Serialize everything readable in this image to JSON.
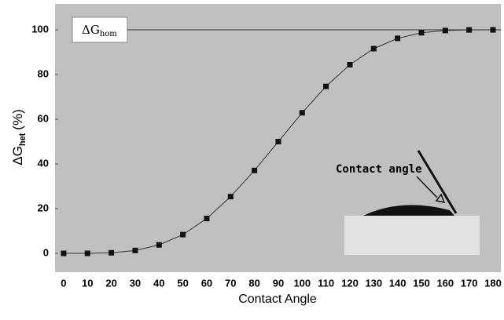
{
  "chart_data": {
    "type": "line",
    "x_label": "Contact Angle",
    "y_label": {
      "main": "ΔG",
      "sub": "het",
      "suffix": "(%)"
    },
    "reference_label": {
      "main": "ΔG",
      "sub": "hom"
    },
    "reference_value": 100,
    "annotation": "Contact angle",
    "x": [
      0,
      10,
      20,
      30,
      40,
      50,
      60,
      70,
      80,
      90,
      100,
      110,
      120,
      130,
      140,
      150,
      160,
      170,
      180
    ],
    "series": [
      {
        "color": "#111111",
        "values": [
          0,
          0.02,
          0.27,
          1.3,
          3.8,
          8.4,
          15.6,
          25.4,
          37.1,
          50,
          62.9,
          74.7,
          84.4,
          91.6,
          96.2,
          98.7,
          99.7,
          99.98,
          100
        ]
      }
    ],
    "xlim": [
      -3.6,
      183.3
    ],
    "ylim": [
      -8.4,
      111.6
    ],
    "xticks": [
      0,
      10,
      20,
      30,
      40,
      50,
      60,
      70,
      80,
      90,
      100,
      110,
      120,
      130,
      140,
      150,
      160,
      170,
      180
    ],
    "yticks": [
      0,
      20,
      40,
      60,
      80,
      100
    ]
  }
}
